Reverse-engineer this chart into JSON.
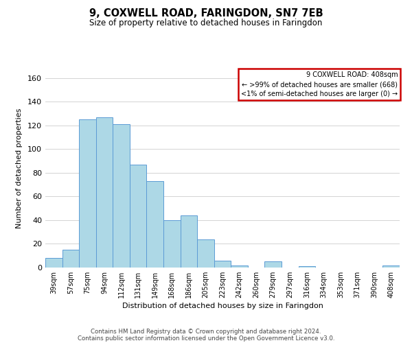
{
  "title": "9, COXWELL ROAD, FARINGDON, SN7 7EB",
  "subtitle": "Size of property relative to detached houses in Faringdon",
  "xlabel": "Distribution of detached houses by size in Faringdon",
  "ylabel": "Number of detached properties",
  "bar_color": "#add8e6",
  "bar_edge_color": "#5b9bd5",
  "categories": [
    "39sqm",
    "57sqm",
    "75sqm",
    "94sqm",
    "112sqm",
    "131sqm",
    "149sqm",
    "168sqm",
    "186sqm",
    "205sqm",
    "223sqm",
    "242sqm",
    "260sqm",
    "279sqm",
    "297sqm",
    "316sqm",
    "334sqm",
    "353sqm",
    "371sqm",
    "390sqm",
    "408sqm"
  ],
  "values": [
    8,
    15,
    125,
    127,
    121,
    87,
    73,
    40,
    44,
    24,
    6,
    2,
    0,
    5,
    0,
    1,
    0,
    0,
    0,
    0,
    2
  ],
  "ylim": [
    0,
    168
  ],
  "yticks": [
    0,
    20,
    40,
    60,
    80,
    100,
    120,
    140,
    160
  ],
  "legend_title": "9 COXWELL ROAD: 408sqm",
  "legend_line1": "← >99% of detached houses are smaller (668)",
  "legend_line2": "<1% of semi-detached houses are larger (0) →",
  "legend_box_color": "#ffffff",
  "legend_box_edge_color": "#cc0000",
  "footer_line1": "Contains HM Land Registry data © Crown copyright and database right 2024.",
  "footer_line2": "Contains public sector information licensed under the Open Government Licence v3.0.",
  "grid_color": "#cccccc",
  "background_color": "#ffffff"
}
